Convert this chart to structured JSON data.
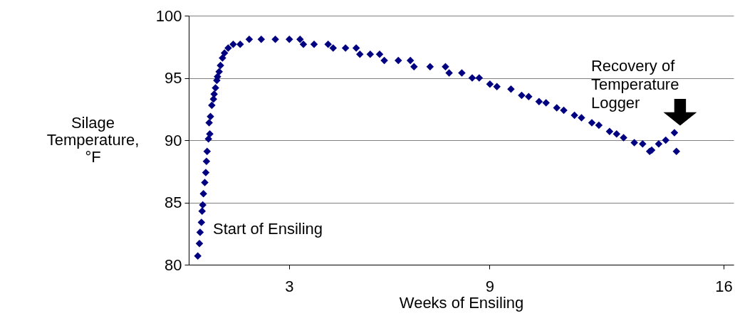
{
  "chart_data": {
    "type": "scatter",
    "xlabel": "Weeks of Ensiling",
    "ylabel": "Silage\nTemperature,\n°F",
    "x": [
      0.27,
      0.32,
      0.34,
      0.38,
      0.4,
      0.42,
      0.44,
      0.48,
      0.51,
      0.53,
      0.55,
      0.59,
      0.61,
      0.63,
      0.65,
      0.69,
      0.74,
      0.76,
      0.8,
      0.84,
      0.86,
      0.91,
      0.95,
      1.01,
      1.07,
      1.18,
      1.33,
      1.54,
      1.81,
      2.17,
      2.59,
      3.01,
      3.33,
      3.43,
      3.75,
      4.17,
      4.32,
      4.69,
      5.01,
      5.12,
      5.43,
      5.71,
      5.85,
      6.27,
      6.63,
      6.74,
      7.22,
      7.68,
      7.79,
      8.17,
      8.48,
      8.69,
      9.01,
      9.22,
      9.64,
      9.96,
      10.17,
      10.48,
      10.69,
      11.01,
      11.22,
      11.54,
      11.75,
      12.06,
      12.27,
      12.59,
      12.8,
      13.01,
      13.33,
      13.58,
      13.79,
      13.85,
      14.06,
      14.27,
      14.53,
      14.59
    ],
    "series": [
      {
        "color": "#000080",
        "values": [
          80.7,
          81.7,
          82.6,
          83.4,
          84.3,
          84.8,
          85.7,
          86.6,
          87.4,
          88.3,
          89.1,
          90.1,
          91.4,
          90.5,
          91.9,
          92.8,
          93.3,
          93.7,
          94.2,
          94.8,
          95.1,
          95.5,
          96.0,
          96.6,
          97.0,
          97.4,
          97.7,
          97.7,
          98.1,
          98.1,
          98.1,
          98.1,
          98.1,
          97.7,
          97.7,
          97.7,
          97.4,
          97.4,
          97.4,
          96.9,
          96.9,
          96.9,
          96.4,
          96.4,
          96.4,
          95.9,
          95.9,
          95.9,
          95.4,
          95.4,
          95.0,
          95.0,
          94.5,
          94.3,
          94.1,
          93.6,
          93.5,
          93.1,
          93.0,
          92.6,
          92.4,
          92.0,
          91.8,
          91.4,
          91.2,
          90.7,
          90.5,
          90.2,
          89.8,
          89.7,
          89.1,
          89.2,
          89.7,
          90.0,
          90.6,
          89.1
        ]
      }
    ],
    "xlim": [
      0,
      16.3
    ],
    "xticks": [
      3,
      9,
      16
    ],
    "ylim": [
      80,
      100
    ],
    "yticks": [
      80,
      85,
      90,
      95,
      100
    ],
    "grid": "y",
    "marker": "diamond",
    "annotations": [
      "Start of Ensiling",
      {
        "text": "Recovery of\nTemperature\nLogger",
        "x": 14.53,
        "y": 90.6
      }
    ]
  }
}
